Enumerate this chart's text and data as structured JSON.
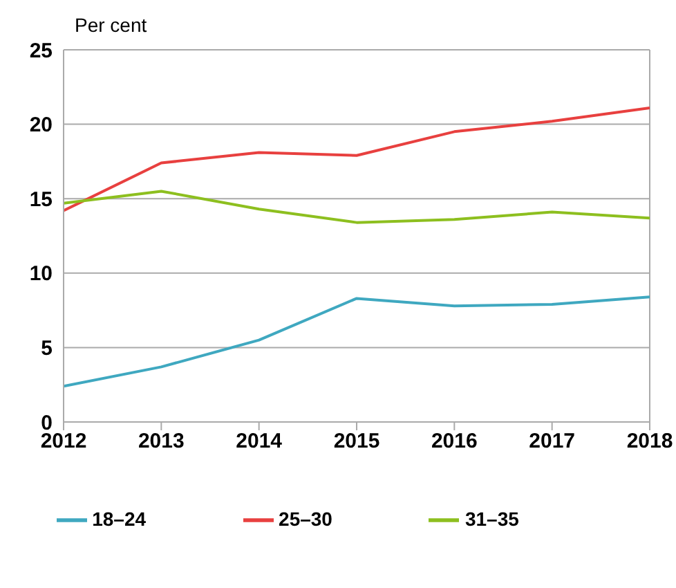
{
  "chart_data": {
    "type": "line",
    "ylabel": "Per cent",
    "x": [
      2012,
      2013,
      2014,
      2015,
      2016,
      2017,
      2018
    ],
    "xlim": [
      2012,
      2018
    ],
    "xticks": [
      2012,
      2013,
      2014,
      2015,
      2016,
      2017,
      2018
    ],
    "ylim": [
      0,
      25
    ],
    "yticks": [
      0,
      5,
      10,
      15,
      20,
      25
    ],
    "grid": "y",
    "legend": "bottom",
    "marker": "none",
    "line_style": "solid",
    "series": [
      {
        "name": "18–24",
        "color": "#3fa8c0",
        "values": [
          2.4,
          3.7,
          5.5,
          8.3,
          7.8,
          7.9,
          8.4
        ]
      },
      {
        "name": "25–30",
        "color": "#e8403f",
        "values": [
          14.2,
          17.4,
          18.1,
          17.9,
          19.5,
          20.2,
          21.1
        ]
      },
      {
        "name": "31–35",
        "color": "#8dbf1f",
        "values": [
          14.7,
          15.5,
          14.3,
          13.4,
          13.6,
          14.1,
          13.7
        ]
      }
    ]
  }
}
